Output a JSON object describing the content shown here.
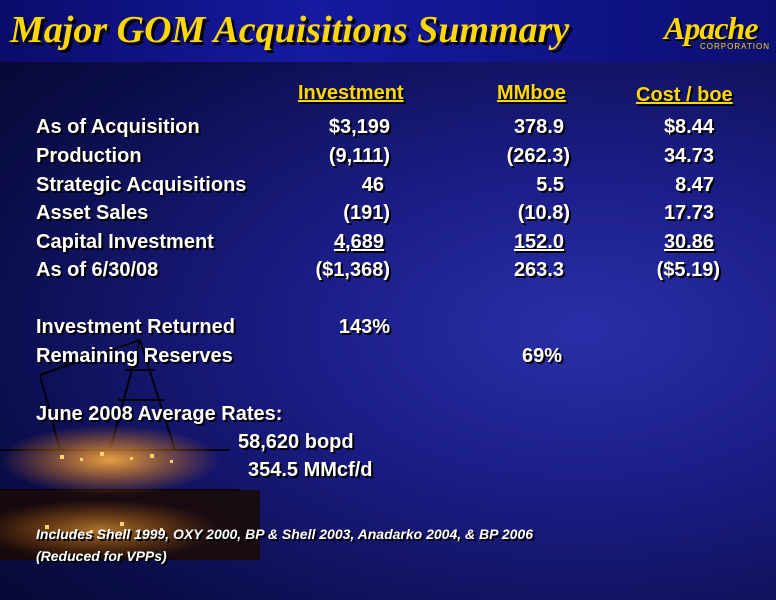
{
  "title": "Major GOM Acquisitions Summary",
  "logo": {
    "word": "Apache",
    "corp": "CORPORATION"
  },
  "columns": {
    "investment": "Investment",
    "mmboe": "MMboe",
    "cost": "Cost / boe"
  },
  "rows": [
    {
      "label": "As of Acquisition",
      "investment": "$3,199",
      "mmboe": "378.9",
      "cost": "$8.44"
    },
    {
      "label": "Production",
      "investment": "(9,111)",
      "mmboe": "(262.3)",
      "cost": "34.73"
    },
    {
      "label": "Strategic Acquisitions",
      "investment": "46",
      "mmboe": "5.5",
      "cost": "8.47"
    },
    {
      "label": "Asset Sales",
      "investment": "(191)",
      "mmboe": "(10.8)",
      "cost": "17.73"
    },
    {
      "label": "Capital Investment",
      "investment": "4,689",
      "mmboe": "152.0",
      "cost": "30.86"
    },
    {
      "label": "As of 6/30/08",
      "investment": "($1,368)",
      "mmboe": "263.3",
      "cost": "($5.19)"
    }
  ],
  "returned": {
    "label": "Investment Returned",
    "value": "143%"
  },
  "remaining": {
    "label": "Remaining Reserves",
    "value": "69%"
  },
  "rates": {
    "label": "June 2008 Average Rates:",
    "oil": "58,620 bopd",
    "gas": "354.5 MMcf/d"
  },
  "footnote": {
    "line1": "Includes Shell 1999, OXY 2000, BP & Shell 2003, Anadarko 2004, & BP 2006",
    "line2": "(Reduced for VPPs)"
  }
}
